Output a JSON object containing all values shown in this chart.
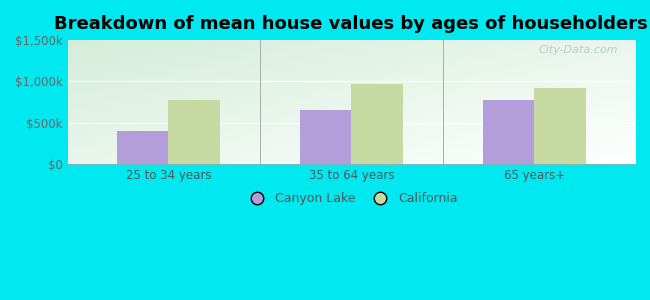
{
  "title": "Breakdown of mean house values by ages of householders",
  "categories": [
    "25 to 34 years",
    "35 to 64 years",
    "65 years+"
  ],
  "canyon_lake": [
    400000,
    650000,
    775000
  ],
  "california": [
    775000,
    970000,
    925000
  ],
  "canyon_lake_color": "#b39ddb",
  "california_color": "#c5d9a0",
  "ylim": [
    0,
    1500000
  ],
  "yticks": [
    0,
    500000,
    1000000,
    1500000
  ],
  "ytick_labels": [
    "$0",
    "$500k",
    "$1,000k",
    "$1,500k"
  ],
  "background_outer": "#00e8f0",
  "bar_width": 0.28,
  "legend_canyon_lake": "Canyon Lake",
  "legend_california": "California",
  "title_fontsize": 13,
  "watermark": "City-Data.com"
}
